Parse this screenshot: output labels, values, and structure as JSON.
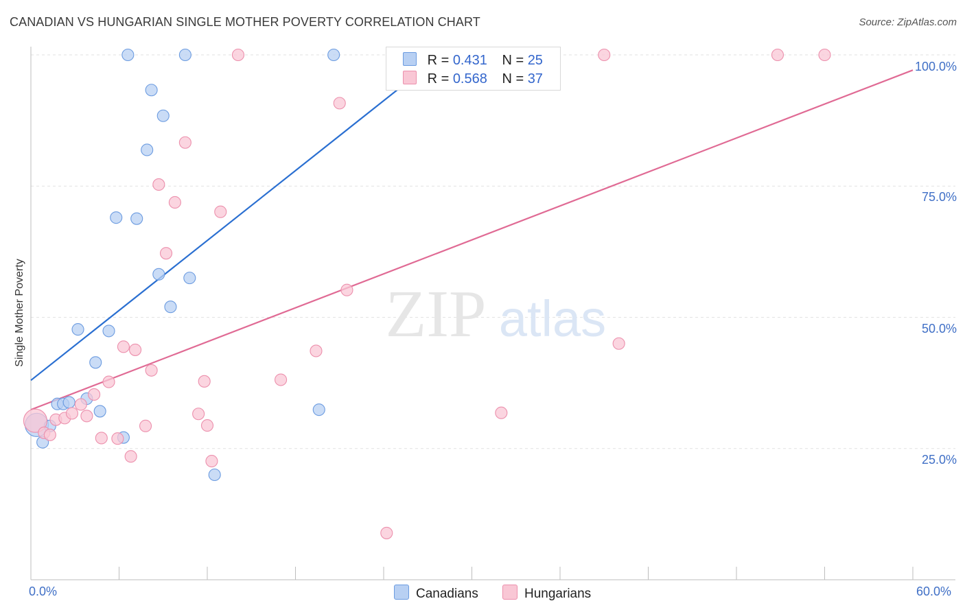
{
  "title": "CANADIAN VS HUNGARIAN SINGLE MOTHER POVERTY CORRELATION CHART",
  "source": "Source: ZipAtlas.com",
  "watermark": {
    "zip": "ZIP",
    "atlas": "atlas"
  },
  "legend": {
    "r_label": "R =",
    "n_label": "N =",
    "canadians": {
      "r": "0.431",
      "n": "25"
    },
    "hungarians": {
      "r": "0.568",
      "n": "37"
    }
  },
  "bottom_legend": {
    "canadians": "Canadians",
    "hungarians": "Hungarians"
  },
  "colors": {
    "canadians_fill": "#b8d0f3",
    "canadians_stroke": "#6b9be0",
    "canadians_line": "#2a6fd1",
    "hungarians_fill": "#f9c7d5",
    "hungarians_stroke": "#ec8fac",
    "hungarians_line": "#e06a94",
    "tick_label": "#3f6fc6"
  },
  "chart_data": {
    "type": "scatter",
    "title": "CANADIAN VS HUNGARIAN SINGLE MOTHER POVERTY CORRELATION CHART",
    "xlabel": "",
    "ylabel": "Single Mother Poverty",
    "xlim": [
      0,
      60
    ],
    "ylim": [
      0,
      105
    ],
    "x_tick_labels": {
      "min": "0.0%",
      "max": "60.0%"
    },
    "y_ticks": [
      25,
      50,
      75,
      100
    ],
    "y_tick_labels": [
      "25.0%",
      "50.0%",
      "75.0%",
      "100.0%"
    ],
    "grid": true,
    "series": [
      {
        "name": "Canadians",
        "r": 0.431,
        "n": 25,
        "trend": {
          "x": [
            0,
            25.5
          ],
          "y": [
            38.0,
            94.6
          ]
        },
        "points": [
          [
            0.4,
            29.5
          ],
          [
            0.8,
            26.2
          ],
          [
            1.3,
            29.3
          ],
          [
            1.8,
            33.5
          ],
          [
            2.2,
            33.5
          ],
          [
            2.6,
            33.8
          ],
          [
            3.2,
            47.7
          ],
          [
            3.8,
            34.5
          ],
          [
            4.4,
            41.4
          ],
          [
            4.7,
            32.1
          ],
          [
            5.3,
            47.4
          ],
          [
            5.8,
            69.0
          ],
          [
            6.3,
            27.1
          ],
          [
            6.6,
            100.0
          ],
          [
            7.2,
            68.8
          ],
          [
            7.9,
            81.9
          ],
          [
            8.2,
            93.3
          ],
          [
            8.7,
            58.2
          ],
          [
            9.0,
            88.4
          ],
          [
            9.5,
            52.0
          ],
          [
            10.5,
            100.0
          ],
          [
            10.8,
            57.5
          ],
          [
            12.5,
            20.0
          ],
          [
            19.6,
            32.4
          ],
          [
            20.6,
            100.0
          ]
        ]
      },
      {
        "name": "Hungarians",
        "r": 0.568,
        "n": 37,
        "trend": {
          "x": [
            0,
            60
          ],
          "y": [
            32.4,
            97.1
          ]
        },
        "points": [
          [
            0.3,
            30.3
          ],
          [
            0.9,
            28.0
          ],
          [
            1.3,
            27.6
          ],
          [
            1.7,
            30.5
          ],
          [
            2.3,
            30.8
          ],
          [
            2.8,
            31.7
          ],
          [
            3.4,
            33.4
          ],
          [
            3.8,
            31.2
          ],
          [
            4.3,
            35.3
          ],
          [
            4.8,
            27.0
          ],
          [
            5.3,
            37.7
          ],
          [
            5.9,
            26.9
          ],
          [
            6.3,
            44.4
          ],
          [
            6.8,
            23.5
          ],
          [
            7.1,
            43.8
          ],
          [
            7.8,
            29.3
          ],
          [
            8.2,
            39.9
          ],
          [
            8.7,
            75.3
          ],
          [
            9.2,
            62.2
          ],
          [
            9.8,
            71.9
          ],
          [
            10.5,
            83.3
          ],
          [
            11.4,
            31.6
          ],
          [
            11.8,
            37.8
          ],
          [
            12.0,
            29.4
          ],
          [
            12.3,
            22.6
          ],
          [
            12.9,
            70.1
          ],
          [
            14.1,
            100.0
          ],
          [
            17.0,
            38.1
          ],
          [
            19.4,
            43.6
          ],
          [
            21.0,
            90.8
          ],
          [
            21.5,
            55.2
          ],
          [
            24.2,
            8.9
          ],
          [
            32.0,
            31.8
          ],
          [
            39.0,
            100.0
          ],
          [
            40.0,
            45.0
          ],
          [
            50.8,
            100.0
          ],
          [
            54.0,
            100.0
          ]
        ]
      }
    ]
  }
}
